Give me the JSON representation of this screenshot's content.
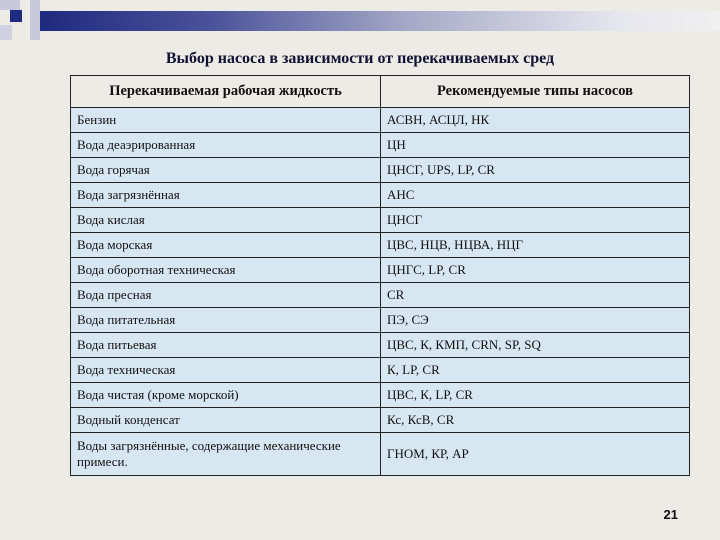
{
  "title": "Выбор насоса в зависимости от перекачиваемых сред",
  "table": {
    "headers": [
      "Перекачиваемая рабочая жидкость",
      "Рекомендуемые типы насосов"
    ],
    "rows": [
      [
        "Бензин",
        "АСВН, АСЦЛ, НК"
      ],
      [
        "Вода деаэрированная",
        "ЦН"
      ],
      [
        "Вода горячая",
        "ЦНСГ, UPS, LP, CR"
      ],
      [
        "Вода загрязнённая",
        "АНС"
      ],
      [
        "Вода кислая",
        "ЦНСГ"
      ],
      [
        "Вода морская",
        "ЦВС, НЦВ, НЦВА, НЦГ"
      ],
      [
        "Вода оборотная техническая",
        "ЦНГС, LP, CR"
      ],
      [
        "Вода пресная",
        "CR"
      ],
      [
        "Вода питательная",
        "ПЭ, СЭ"
      ],
      [
        "Вода питьевая",
        "ЦВС, К, КМП, CRN, SP, SQ"
      ],
      [
        "Вода техническая",
        "К, LP, CR"
      ],
      [
        "Вода чистая (кроме морской)",
        "ЦВС, К, LP, CR"
      ],
      [
        "Водный конденсат",
        "Кс, КсВ, CR"
      ],
      [
        "Воды загрязнённые, содержащие механические примеси.",
        "ГНОМ, КР, АР"
      ]
    ]
  },
  "page_number": "21",
  "colors": {
    "accent": "#1f2a80",
    "cell_bg": "#d7e7f2"
  }
}
